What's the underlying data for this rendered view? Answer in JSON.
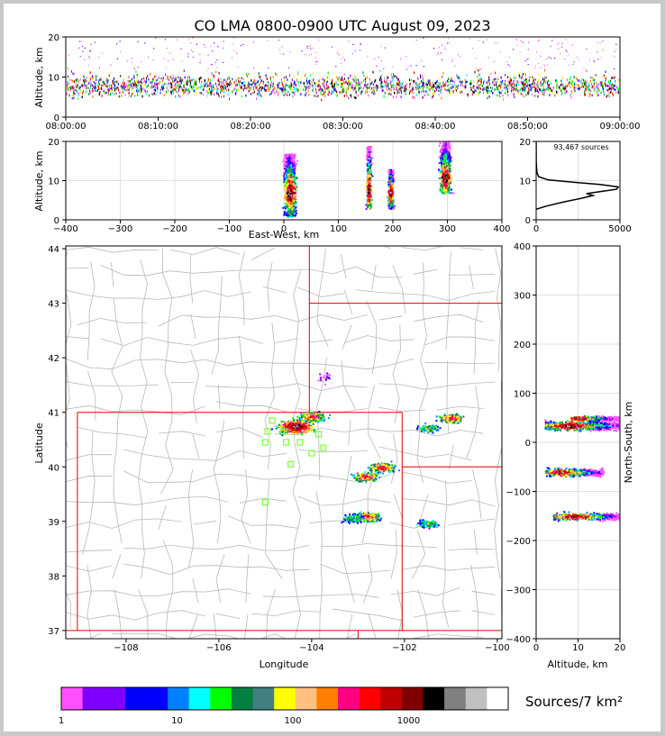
{
  "chart_data": [
    {
      "panel": "time-height",
      "type": "scatter",
      "title": "CO LMA 0800-0900 UTC August 09, 2023",
      "xlabel": "",
      "ylabel": "Altitude, km",
      "xlim_minutes": [
        0,
        60
      ],
      "ylim": [
        0,
        20
      ],
      "xticks": [
        "08:00:00",
        "08:10:00",
        "08:20:00",
        "08:30:00",
        "08:40:00",
        "08:50:00",
        "09:00:00"
      ],
      "xtick_minutes": [
        0,
        10,
        20,
        30,
        40,
        50,
        60
      ],
      "yticks": [
        0,
        10,
        20
      ],
      "altitude_band_km": [
        3,
        12
      ],
      "typical_peak_km": 8
    },
    {
      "panel": "east-west vs altitude",
      "type": "heatmap",
      "xlabel": "East-West, km",
      "ylabel": "Altitude, km",
      "xlim": [
        -400,
        400
      ],
      "ylim": [
        0,
        20
      ],
      "xticks": [
        -400,
        -300,
        -200,
        -100,
        0,
        100,
        200,
        300,
        400
      ],
      "yticks": [
        0,
        10,
        20
      ],
      "clusters": [
        {
          "x": 10,
          "alt_lo": 1,
          "alt_hi": 17,
          "peak": 7
        },
        {
          "x": 155,
          "alt_lo": 3,
          "alt_hi": 19,
          "peak": 8
        },
        {
          "x": 195,
          "alt_lo": 3,
          "alt_hi": 13,
          "peak": 7
        },
        {
          "x": 295,
          "alt_lo": 7,
          "alt_hi": 20,
          "peak": 11
        }
      ]
    },
    {
      "panel": "altitude histogram",
      "type": "line",
      "annotation": "93,467 sources",
      "xlim": [
        0,
        5000
      ],
      "ylim": [
        0,
        20
      ],
      "xticks": [
        0,
        5000
      ],
      "yticks": [
        0,
        10,
        20
      ],
      "profile": [
        {
          "alt": 2.7,
          "count": 0
        },
        {
          "alt": 3.5,
          "count": 600
        },
        {
          "alt": 4.5,
          "count": 1600
        },
        {
          "alt": 5.5,
          "count": 2700
        },
        {
          "alt": 6.2,
          "count": 3400
        },
        {
          "alt": 6.7,
          "count": 3000
        },
        {
          "alt": 7.2,
          "count": 3800
        },
        {
          "alt": 7.8,
          "count": 4800
        },
        {
          "alt": 8.4,
          "count": 4900
        },
        {
          "alt": 9.0,
          "count": 3800
        },
        {
          "alt": 9.6,
          "count": 2200
        },
        {
          "alt": 10.2,
          "count": 700
        },
        {
          "alt": 11.0,
          "count": 150
        },
        {
          "alt": 12.0,
          "count": 50
        },
        {
          "alt": 13.5,
          "count": 20
        },
        {
          "alt": 15.0,
          "count": 5
        },
        {
          "alt": 20.0,
          "count": 0
        }
      ]
    },
    {
      "panel": "plan view",
      "type": "heatmap",
      "xlabel": "Longitude",
      "ylabel": "Latitude",
      "xlim": [
        -109.3,
        -99.9
      ],
      "ylim": [
        36.85,
        44.05
      ],
      "xticks": [
        -108,
        -106,
        -104,
        -102,
        -100
      ],
      "yticks": [
        37,
        38,
        39,
        40,
        41,
        42,
        43,
        44
      ],
      "state_boundaries": "red lines (Colorado and neighbors)",
      "county_boundaries": "gray lines",
      "stations": [
        {
          "lon": -104.85,
          "lat": 40.85
        },
        {
          "lon": -104.95,
          "lat": 40.65
        },
        {
          "lon": -104.6,
          "lat": 40.65
        },
        {
          "lon": -105.0,
          "lat": 40.45
        },
        {
          "lon": -104.55,
          "lat": 40.45
        },
        {
          "lon": -104.25,
          "lat": 40.45
        },
        {
          "lon": -103.85,
          "lat": 40.6
        },
        {
          "lon": -103.75,
          "lat": 40.35
        },
        {
          "lon": -104.0,
          "lat": 40.25
        },
        {
          "lon": -104.45,
          "lat": 40.05
        },
        {
          "lon": -105.0,
          "lat": 39.35
        }
      ],
      "clusters": [
        {
          "lon": -104.35,
          "lat": 40.75,
          "density": "high"
        },
        {
          "lon": -104.0,
          "lat": 40.93,
          "density": "medium"
        },
        {
          "lon": -101.0,
          "lat": 40.9,
          "density": "medium"
        },
        {
          "lon": -101.5,
          "lat": 40.72,
          "density": "low"
        },
        {
          "lon": -102.5,
          "lat": 40.0,
          "density": "medium"
        },
        {
          "lon": -102.85,
          "lat": 39.83,
          "density": "medium"
        },
        {
          "lon": -102.8,
          "lat": 39.1,
          "density": "medium"
        },
        {
          "lon": -103.15,
          "lat": 39.07,
          "density": "low"
        },
        {
          "lon": -101.5,
          "lat": 38.97,
          "density": "low"
        },
        {
          "lon": -103.75,
          "lat": 41.65,
          "density": "sparse"
        }
      ]
    },
    {
      "panel": "north-south vs altitude",
      "type": "heatmap",
      "xlabel": "Altitude, km",
      "ylabel": "North-South, km",
      "xlim": [
        0,
        20
      ],
      "ylim": [
        -400,
        400
      ],
      "xticks": [
        0,
        10,
        20
      ],
      "yticks": [
        -400,
        -300,
        -200,
        -100,
        0,
        100,
        200,
        300,
        400
      ],
      "clusters": [
        {
          "ns": 35,
          "alt_lo": 2,
          "alt_hi": 20,
          "peak": 8
        },
        {
          "ns": 50,
          "alt_lo": 8,
          "alt_hi": 20,
          "peak": 10
        },
        {
          "ns": -60,
          "alt_lo": 2,
          "alt_hi": 16,
          "peak": 6
        },
        {
          "ns": -150,
          "alt_lo": 4,
          "alt_hi": 20,
          "peak": 9
        }
      ]
    },
    {
      "panel": "color scale",
      "type": "heatmap",
      "label": "Sources/7 km²",
      "ticks": [
        1,
        10,
        100,
        1000
      ],
      "colors": [
        "#ff50ff",
        "#8000ff",
        "#8000ff",
        "#0000ff",
        "#0000ff",
        "#0080ff",
        "#00ffff",
        "#00ff00",
        "#008040",
        "#408080",
        "#ffff00",
        "#ffc080",
        "#ff8000",
        "#ff0080",
        "#ff0000",
        "#c00000",
        "#800000",
        "#000000",
        "#808080",
        "#c0c0c0",
        "#ffffff"
      ]
    }
  ]
}
